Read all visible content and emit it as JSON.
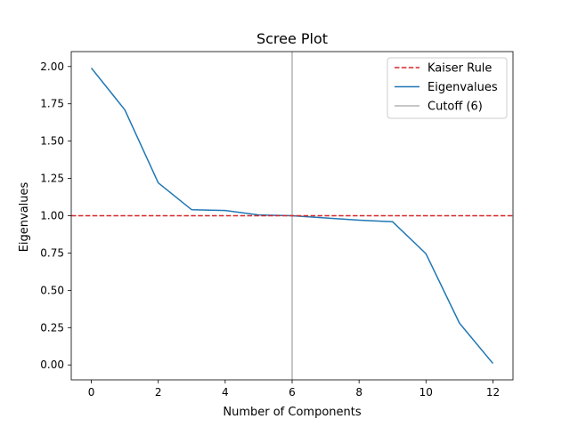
{
  "chart_data": {
    "type": "line",
    "title": "Scree Plot",
    "xlabel": "Number of Components",
    "ylabel": "Eigenvalues",
    "xlim": [
      -0.6,
      12.6
    ],
    "ylim": [
      -0.1,
      2.1
    ],
    "xticks": [
      0,
      2,
      4,
      6,
      8,
      10,
      12
    ],
    "xtick_labels": [
      "0",
      "2",
      "4",
      "6",
      "8",
      "10",
      "12"
    ],
    "yticks": [
      0.0,
      0.25,
      0.5,
      0.75,
      1.0,
      1.25,
      1.5,
      1.75,
      2.0
    ],
    "ytick_labels": [
      "0.00",
      "0.25",
      "0.50",
      "0.75",
      "1.00",
      "1.25",
      "1.50",
      "1.75",
      "2.00"
    ],
    "grid": false,
    "legend_position": "top-right",
    "series": [
      {
        "name": "Eigenvalues",
        "color": "#1f77b4",
        "x": [
          0,
          1,
          2,
          3,
          4,
          5,
          6,
          7,
          8,
          9,
          10,
          11,
          12
        ],
        "values": [
          1.99,
          1.71,
          1.22,
          1.04,
          1.035,
          1.005,
          1.0,
          0.985,
          0.97,
          0.96,
          0.745,
          0.28,
          0.01
        ]
      }
    ],
    "reference_lines": [
      {
        "name": "Kaiser Rule",
        "orientation": "horizontal",
        "value": 1.0,
        "color": "#d62728",
        "style": "dashed"
      },
      {
        "name": "Cutoff (6)",
        "orientation": "vertical",
        "value": 6,
        "color": "#b3b3b3",
        "style": "solid"
      }
    ],
    "legend": [
      {
        "label": "Kaiser Rule",
        "color": "#d62728",
        "style": "dashed"
      },
      {
        "label": "Eigenvalues",
        "color": "#1f77b4",
        "style": "solid"
      },
      {
        "label": "Cutoff (6)",
        "color": "#b3b3b3",
        "style": "solid"
      }
    ]
  }
}
